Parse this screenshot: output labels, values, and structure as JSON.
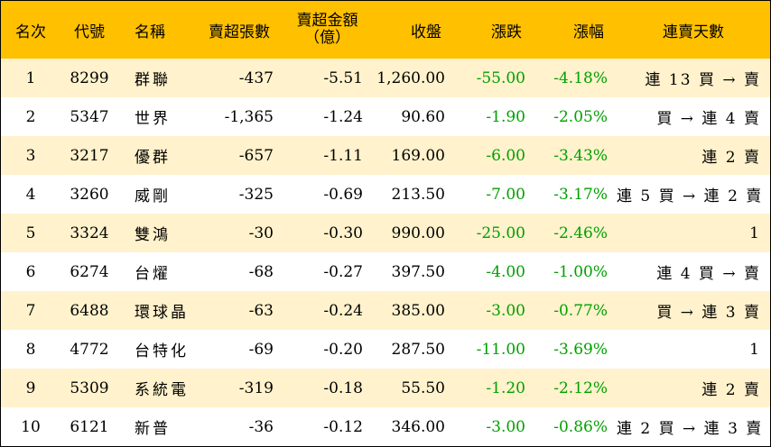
{
  "headers": {
    "rank": "名次",
    "code": "代號",
    "name": "名稱",
    "net_sell_shares": "賣超張數",
    "net_sell_amount_line1": "賣超金額",
    "net_sell_amount_line2": "（億）",
    "close": "收盤",
    "change": "漲跌",
    "change_pct": "漲幅",
    "streak": "連賣天數"
  },
  "colors": {
    "header_bg": "#ffc000",
    "odd_row_bg": "#fff2cc",
    "even_row_bg": "#ffffff",
    "negative_change": "#00a000"
  },
  "rows": [
    {
      "rank": "1",
      "code": "8299",
      "name": "群聯",
      "shares": "-437",
      "amount": "-5.51",
      "close": "1,260.00",
      "change": "-55.00",
      "pct": "-4.18%",
      "streak": "連 13 買 → 賣"
    },
    {
      "rank": "2",
      "code": "5347",
      "name": "世界",
      "shares": "-1,365",
      "amount": "-1.24",
      "close": "90.60",
      "change": "-1.90",
      "pct": "-2.05%",
      "streak": "買 → 連 4 賣"
    },
    {
      "rank": "3",
      "code": "3217",
      "name": "優群",
      "shares": "-657",
      "amount": "-1.11",
      "close": "169.00",
      "change": "-6.00",
      "pct": "-3.43%",
      "streak": "連 2 賣"
    },
    {
      "rank": "4",
      "code": "3260",
      "name": "威剛",
      "shares": "-325",
      "amount": "-0.69",
      "close": "213.50",
      "change": "-7.00",
      "pct": "-3.17%",
      "streak": "連 5 買 → 連 2 賣"
    },
    {
      "rank": "5",
      "code": "3324",
      "name": "雙鴻",
      "shares": "-30",
      "amount": "-0.30",
      "close": "990.00",
      "change": "-25.00",
      "pct": "-2.46%",
      "streak": "1"
    },
    {
      "rank": "6",
      "code": "6274",
      "name": "台燿",
      "shares": "-68",
      "amount": "-0.27",
      "close": "397.50",
      "change": "-4.00",
      "pct": "-1.00%",
      "streak": "連 4 買 → 賣"
    },
    {
      "rank": "7",
      "code": "6488",
      "name": "環球晶",
      "shares": "-63",
      "amount": "-0.24",
      "close": "385.00",
      "change": "-3.00",
      "pct": "-0.77%",
      "streak": "買 → 連 3 賣"
    },
    {
      "rank": "8",
      "code": "4772",
      "name": "台特化",
      "shares": "-69",
      "amount": "-0.20",
      "close": "287.50",
      "change": "-11.00",
      "pct": "-3.69%",
      "streak": "1"
    },
    {
      "rank": "9",
      "code": "5309",
      "name": "系統電",
      "shares": "-319",
      "amount": "-0.18",
      "close": "55.50",
      "change": "-1.20",
      "pct": "-2.12%",
      "streak": "連 2 賣"
    },
    {
      "rank": "10",
      "code": "6121",
      "name": "新普",
      "shares": "-36",
      "amount": "-0.12",
      "close": "346.00",
      "change": "-3.00",
      "pct": "-0.86%",
      "streak": "連 2 買 → 連 3 賣"
    }
  ]
}
